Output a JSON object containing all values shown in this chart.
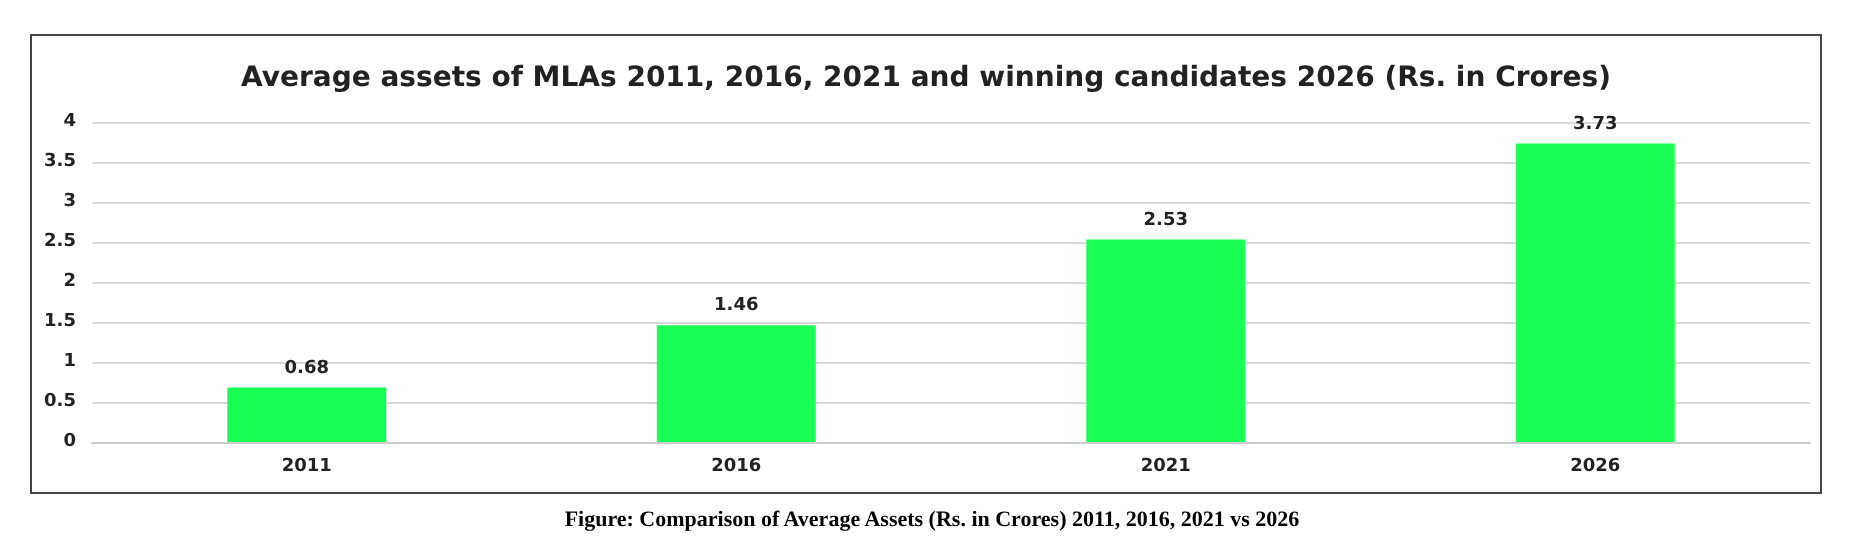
{
  "chart_data": {
    "type": "bar",
    "title": "Average assets of MLAs 2011, 2016, 2021 and winning candidates 2026 (Rs. in Crores)",
    "categories": [
      "2011",
      "2016",
      "2021",
      "2026"
    ],
    "values": [
      0.68,
      1.46,
      2.53,
      3.73
    ],
    "color": "#1aff55",
    "ylim": [
      0,
      4
    ],
    "yticks": [
      0,
      0.5,
      1,
      1.5,
      2,
      2.5,
      3,
      3.5,
      4
    ],
    "grid": "y",
    "data_labels": true,
    "annotations": [
      "Figure: Comparison of Average Assets (Rs. in Crores) 2011, 2016, 2021 vs 2026"
    ]
  }
}
